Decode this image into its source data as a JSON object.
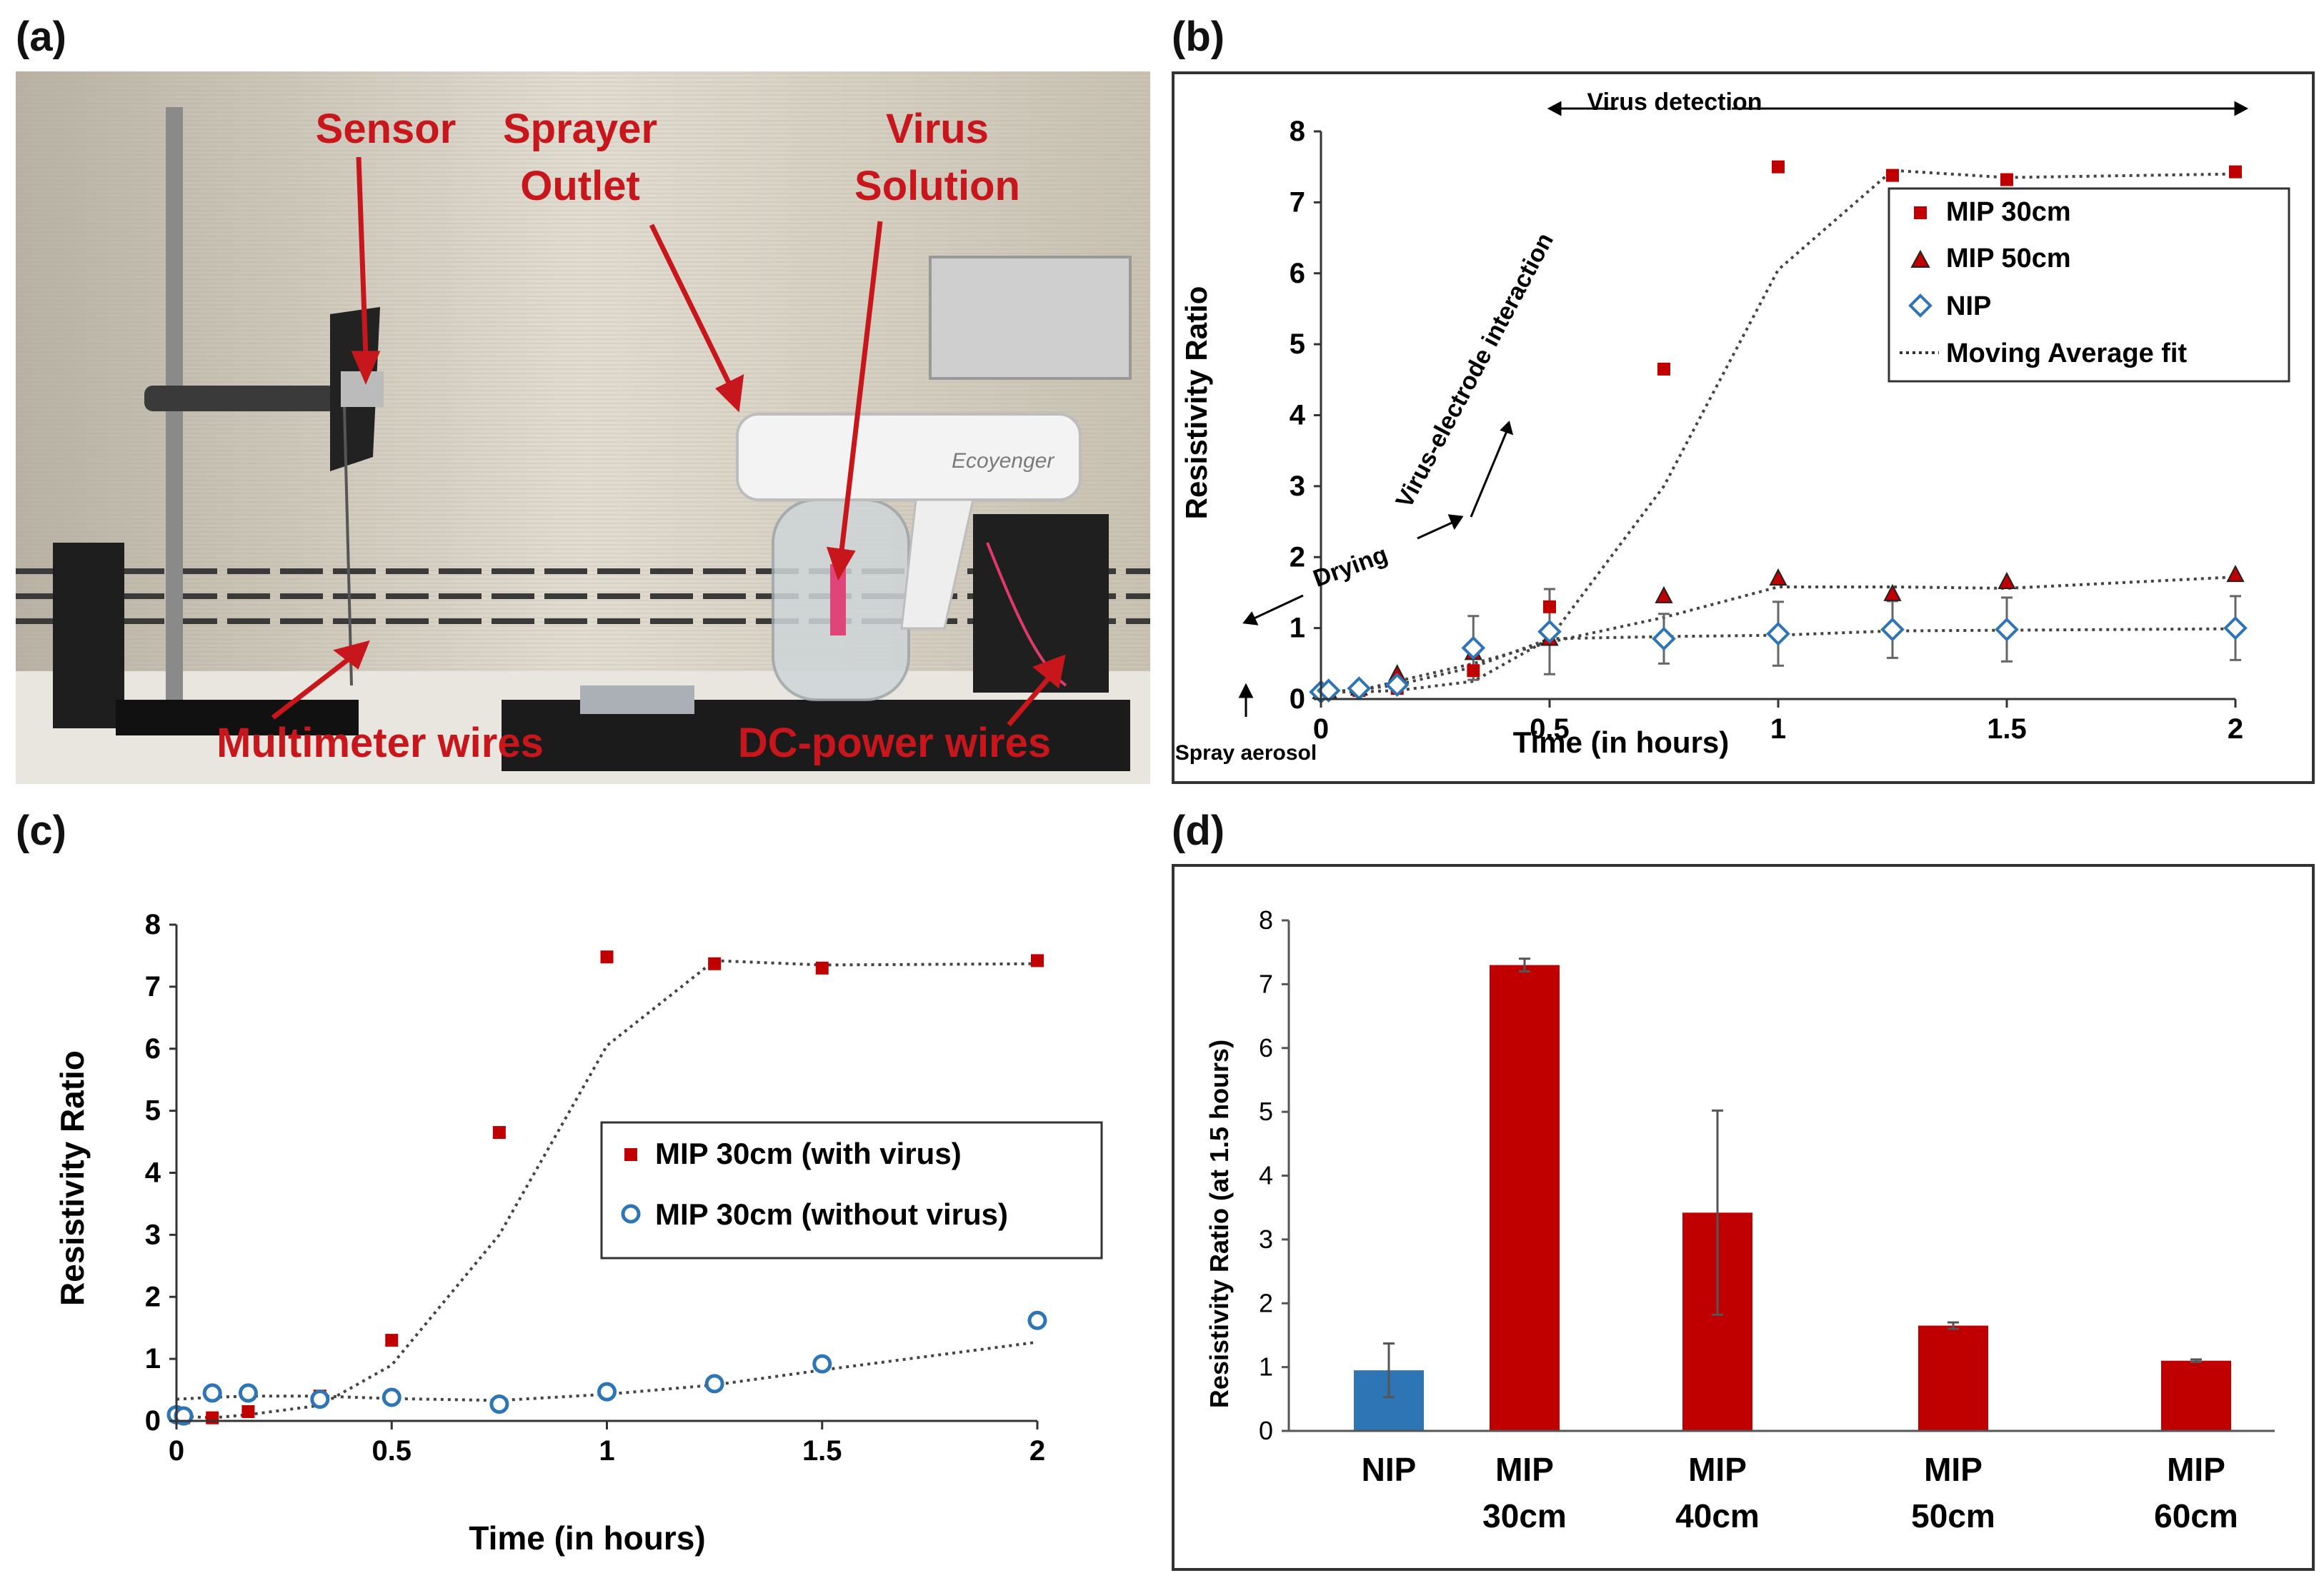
{
  "panels": {
    "a": {
      "letter": "(a)",
      "labels": {
        "sensor": "Sensor",
        "sprayer_l1": "Sprayer",
        "sprayer_l2": "Outlet",
        "virus_l1": "Virus",
        "virus_l2": "Solution",
        "multimeter": "Multimeter wires",
        "dcpower": "DC-power wires",
        "brand": "Ecoyenger"
      },
      "colors": {
        "label": "#c8161d",
        "wall": "#d9d3c6"
      }
    },
    "b": {
      "letter": "(b)"
    },
    "c": {
      "letter": "(c)"
    },
    "d": {
      "letter": "(d)"
    }
  },
  "chart_data": [
    {
      "id": "b",
      "type": "scatter",
      "xlabel": "Time (in hours)",
      "ylabel": "Resistivity Ratio",
      "xlim": [
        0,
        2
      ],
      "ylim": [
        0,
        8
      ],
      "xticks": [
        "0",
        "0.5",
        "1",
        "1.5",
        "2"
      ],
      "yticks": [
        "0",
        "1",
        "2",
        "3",
        "4",
        "5",
        "6",
        "7",
        "8"
      ],
      "legend_position": "top-right",
      "series": [
        {
          "name": "MIP 30cm",
          "marker": "square",
          "color": "#c00000",
          "x": [
            0,
            0.0167,
            0.0833,
            0.1667,
            0.3333,
            0.5,
            0.75,
            1,
            1.25,
            1.5,
            2
          ],
          "y": [
            0.08,
            0.1,
            0.12,
            0.15,
            0.4,
            1.3,
            4.65,
            7.5,
            7.38,
            7.32,
            7.43
          ]
        },
        {
          "name": "MIP 50cm",
          "marker": "triangle",
          "color": "#c00000",
          "x": [
            0,
            0.0167,
            0.0833,
            0.1667,
            0.3333,
            0.5,
            0.75,
            1,
            1.25,
            1.5,
            2
          ],
          "y": [
            0.1,
            0.1,
            0.15,
            0.35,
            0.65,
            0.85,
            1.45,
            1.7,
            1.48,
            1.65,
            1.75
          ],
          "err": [
            0,
            0,
            0,
            0,
            0,
            0,
            0,
            0,
            0,
            0,
            0
          ]
        },
        {
          "name": "NIP",
          "marker": "diamond",
          "color": "#2e75b6",
          "x": [
            0,
            0.0167,
            0.0833,
            0.1667,
            0.3333,
            0.5,
            0.75,
            1,
            1.25,
            1.5,
            2
          ],
          "y": [
            0.1,
            0.12,
            0.15,
            0.2,
            0.72,
            0.95,
            0.85,
            0.92,
            0.98,
            0.98,
            1.0
          ],
          "err": [
            0,
            0,
            0.05,
            0.1,
            0.45,
            0.6,
            0.35,
            0.45,
            0.4,
            0.45,
            0.45
          ]
        }
      ],
      "fit_lines": [
        {
          "name": "Moving Average fit",
          "x": [
            0,
            0.0833,
            0.1667,
            0.3333,
            0.5,
            0.75,
            1,
            1.25,
            1.5,
            2
          ],
          "y": [
            0.1,
            0.1,
            0.12,
            0.25,
            0.85,
            3.0,
            6.05,
            7.45,
            7.35,
            7.4
          ]
        },
        {
          "x": [
            0,
            0.0833,
            0.1667,
            0.3333,
            0.5,
            0.75,
            1,
            1.25,
            1.5,
            2
          ],
          "y": [
            0.1,
            0.12,
            0.25,
            0.5,
            0.8,
            1.15,
            1.58,
            1.58,
            1.56,
            1.72
          ]
        },
        {
          "x": [
            0,
            0.0833,
            0.1667,
            0.3333,
            0.5,
            0.75,
            1,
            1.25,
            1.5,
            2
          ],
          "y": [
            0.1,
            0.13,
            0.2,
            0.45,
            0.85,
            0.88,
            0.9,
            0.96,
            0.97,
            0.99
          ]
        }
      ],
      "annotations": {
        "drying": "Drying",
        "interaction": "Virus-electrode interaction",
        "detection": "Virus detection",
        "spray": "Spray aerosol"
      }
    },
    {
      "id": "c",
      "type": "scatter",
      "xlabel": "Time (in hours)",
      "ylabel": "Resistivity Ratio",
      "xlim": [
        0,
        2
      ],
      "ylim": [
        0,
        8
      ],
      "xticks": [
        "0",
        "0.5",
        "1",
        "1.5",
        "2"
      ],
      "yticks": [
        "0",
        "1",
        "2",
        "3",
        "4",
        "5",
        "6",
        "7",
        "8"
      ],
      "legend_position": "center-right",
      "series": [
        {
          "name": "MIP 30cm (with virus)",
          "marker": "square",
          "color": "#c00000",
          "x": [
            0,
            0.0167,
            0.0833,
            0.1667,
            0.3333,
            0.5,
            0.75,
            1,
            1.25,
            1.5,
            2
          ],
          "y": [
            0.1,
            0.05,
            0.05,
            0.15,
            0.4,
            1.3,
            4.65,
            7.48,
            7.37,
            7.3,
            7.42
          ]
        },
        {
          "name": "MIP 30cm (without virus)",
          "marker": "circle",
          "color": "#2e75b6",
          "x": [
            0,
            0.0167,
            0.0833,
            0.1667,
            0.3333,
            0.5,
            0.75,
            1,
            1.25,
            1.5,
            2
          ],
          "y": [
            0.1,
            0.08,
            0.45,
            0.45,
            0.35,
            0.38,
            0.27,
            0.47,
            0.6,
            0.92,
            1.62
          ]
        }
      ],
      "fit_lines": [
        {
          "x": [
            0,
            0.0833,
            0.1667,
            0.3333,
            0.5,
            0.75,
            1,
            1.25,
            1.5,
            2
          ],
          "y": [
            0.08,
            0.05,
            0.1,
            0.25,
            0.9,
            3.0,
            6.05,
            7.42,
            7.35,
            7.37
          ]
        },
        {
          "x": [
            0,
            0.0833,
            0.1667,
            0.3333,
            0.5,
            0.75,
            1,
            1.25,
            1.5,
            2
          ],
          "y": [
            0.35,
            0.38,
            0.4,
            0.4,
            0.36,
            0.33,
            0.43,
            0.58,
            0.82,
            1.27
          ]
        }
      ]
    },
    {
      "id": "d",
      "type": "bar",
      "ylabel": "Resistivity Ratio (at 1.5 hours)",
      "ylim": [
        0,
        8
      ],
      "yticks": [
        "0",
        "1",
        "2",
        "3",
        "4",
        "5",
        "6",
        "7",
        "8"
      ],
      "categories": [
        {
          "l1": "NIP",
          "l2": ""
        },
        {
          "l1": "MIP",
          "l2": "30cm"
        },
        {
          "l1": "MIP",
          "l2": "40cm"
        },
        {
          "l1": "MIP",
          "l2": "50cm"
        },
        {
          "l1": "MIP",
          "l2": "60cm"
        }
      ],
      "values": [
        0.95,
        7.3,
        3.42,
        1.65,
        1.1
      ],
      "errors": [
        0.42,
        0.1,
        1.6,
        0.05,
        0.02
      ],
      "colors": [
        "#2e75b6",
        "#c00000",
        "#c00000",
        "#c00000",
        "#c00000"
      ]
    }
  ]
}
